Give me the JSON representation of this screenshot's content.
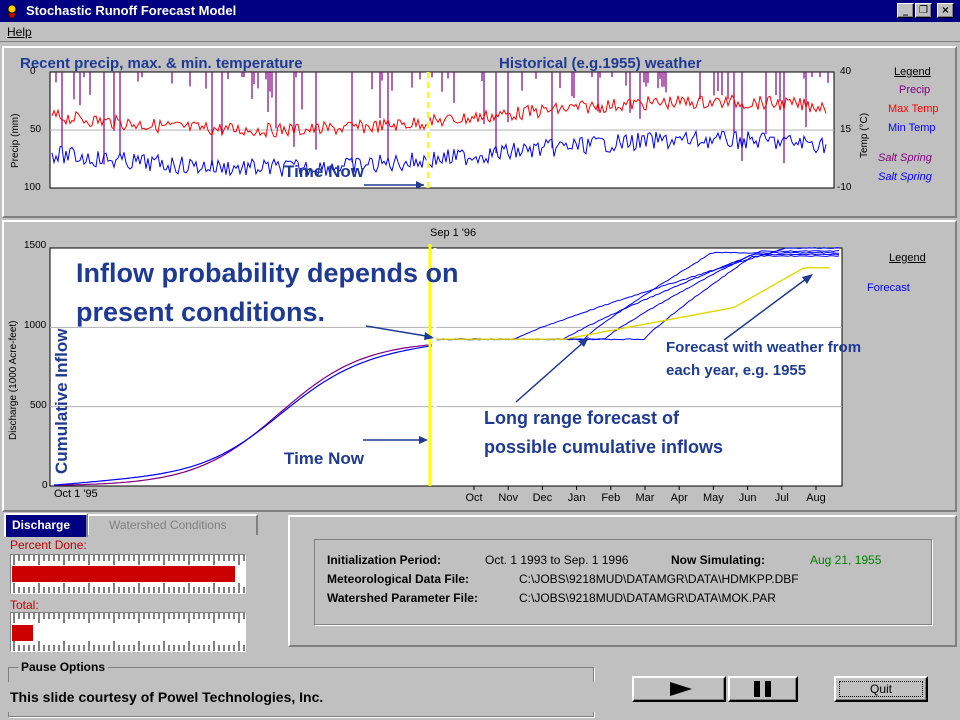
{
  "window": {
    "title": "Stochastic Runoff Forecast Model",
    "controls": {
      "minimize": "_",
      "restore": "❐",
      "close": "×"
    }
  },
  "menu": {
    "help": "Help"
  },
  "weather_panel": {
    "heading_recent": "Recent precip, max. & min. temperature",
    "heading_historical": "Historical (e.g.1955)  weather",
    "y_left_label": "Precip (mm)",
    "y_left_ticks": [
      "0",
      "50",
      "100"
    ],
    "y_right_label": "Temp (°C)",
    "y_right_ticks": [
      "40",
      "15",
      "-10"
    ],
    "time_now": "Time Now",
    "legend": {
      "title": "Legend",
      "items": [
        {
          "label": "Precip",
          "color": "#800080"
        },
        {
          "label": "Max Temp",
          "color": "#ff0000"
        },
        {
          "label": "Min Temp",
          "color": "#0000ff"
        },
        {
          "label": "Salt Spring",
          "color": "#800080"
        },
        {
          "label": "Salt Spring",
          "color": "#0000ff"
        }
      ]
    }
  },
  "discharge_panel": {
    "top_date": "Sep 1 '96",
    "y_label": "Discharge (1000 Acre-feet)",
    "y_ticks": [
      "1500",
      "1000",
      "500",
      "0"
    ],
    "x_start_label": "Oct 1 '95",
    "month_labels": [
      "Oct",
      "Nov",
      "Dec",
      "Jan",
      "Feb",
      "Mar",
      "Apr",
      "May",
      "Jun",
      "Jul",
      "Aug"
    ],
    "overlay_cumulative": "Cumulative Inflow",
    "overlay_headline_1": "Inflow probability depends on",
    "overlay_headline_2": "present conditions.",
    "annotation_forecast_1": "Forecast with weather from",
    "annotation_forecast_2": "each year, e.g. 1955",
    "annotation_longrange_1": "Long range forecast of",
    "annotation_longrange_2": "possible  cumulative inflows",
    "time_now": "Time Now",
    "legend": {
      "title": "Legend",
      "item": "Forecast"
    }
  },
  "tabs": {
    "active": "Discharge",
    "inactive": "Watershed Conditions"
  },
  "progress": {
    "percent_done_label": "Percent Done:",
    "percent_done_fraction": 0.96,
    "total_label": "Total:",
    "total_fraction": 0.09
  },
  "info": {
    "init_label": "Initialization Period:",
    "init_value": "Oct. 1 1993 to Sep. 1 1996",
    "sim_label": "Now Simulating:",
    "sim_value": "Aug 21, 1955",
    "met_label": "Meteorological Data File:",
    "met_value": "C:\\JOBS\\9218MUD\\DATAMGR\\DATA\\HDMKPP.DBF",
    "ws_label": "Watershed Parameter File:",
    "ws_value": "C:\\JOBS\\9218MUD\\DATAMGR\\DATA\\MOK.PAR"
  },
  "pause": {
    "title": "Pause Options"
  },
  "controls": {
    "quit_label": "Quit"
  },
  "footer": {
    "credit": "This slide courtesy of Powel Technologies, Inc."
  },
  "colors": {
    "overlay_blue": "#0000ff",
    "annotation_blue": "#1f3a93",
    "time_now_yellow": "#ffff00"
  }
}
